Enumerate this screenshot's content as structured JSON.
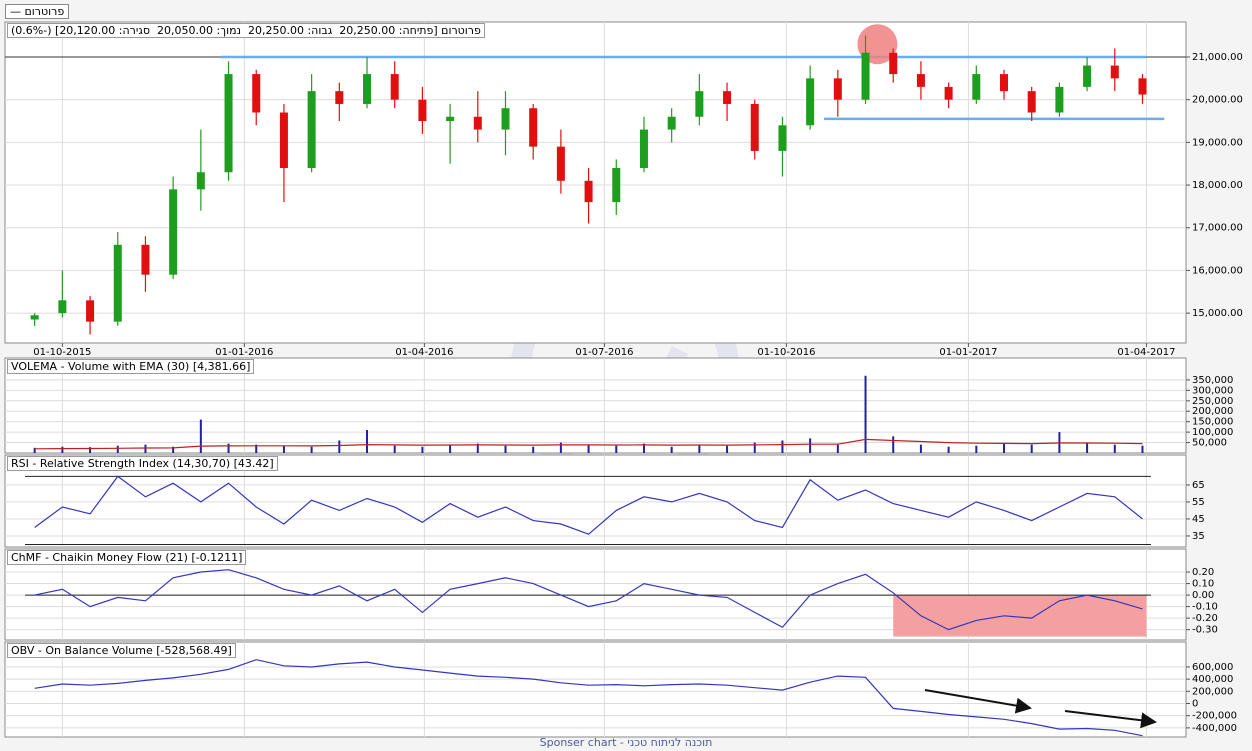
{
  "header": {
    "button": "פרוטרום —"
  },
  "footer": "Sponser chart - תוכנה לניתוח טכני",
  "chart_data": [
    {
      "type": "candlestick",
      "title": "פרוטרום [פתיחה: 20,250.00  גבוה: 20,250.00  נמוך: 20,050.00  סגירה: 20,120.00] (-0.6%)",
      "x": [
        "17-09-2015",
        "01-10-2015",
        "15-10-2015",
        "29-10-2015",
        "12-11-2015",
        "26-11-2015",
        "10-12-2015",
        "24-12-2015",
        "07-01-2016",
        "21-01-2016",
        "04-02-2016",
        "18-02-2016",
        "03-03-2016",
        "17-03-2016",
        "31-03-2016",
        "14-04-2016",
        "28-04-2016",
        "12-05-2016",
        "26-05-2016",
        "09-06-2016",
        "23-06-2016",
        "07-07-2016",
        "21-07-2016",
        "04-08-2016",
        "18-08-2016",
        "01-09-2016",
        "15-09-2016",
        "29-09-2016",
        "13-10-2016",
        "27-10-2016",
        "10-11-2016",
        "24-11-2016",
        "08-12-2016",
        "22-12-2016",
        "05-01-2017",
        "19-01-2017",
        "02-02-2017",
        "16-02-2017",
        "02-03-2017",
        "16-03-2017",
        "30-03-2017"
      ],
      "open": [
        14850,
        15000,
        15300,
        14800,
        16600,
        15900,
        17900,
        18300,
        20600,
        19700,
        18400,
        20200,
        19900,
        20600,
        20000,
        19500,
        19600,
        19300,
        19800,
        18900,
        18100,
        17600,
        18400,
        19300,
        19600,
        20200,
        19900,
        18800,
        19400,
        20500,
        20000,
        21100,
        20600,
        20300,
        20000,
        20600,
        20200,
        19700,
        20300,
        20800,
        20500
      ],
      "high": [
        15000,
        16000,
        15400,
        16900,
        16800,
        18200,
        19300,
        20900,
        20700,
        19900,
        20600,
        20400,
        21000,
        20900,
        20300,
        19900,
        20200,
        20200,
        19900,
        19300,
        18400,
        18600,
        19600,
        19800,
        20600,
        20400,
        20000,
        19600,
        20800,
        20700,
        21500,
        21200,
        20900,
        20400,
        20800,
        20700,
        20300,
        20400,
        21000,
        21200,
        20600
      ],
      "low": [
        14700,
        14900,
        14500,
        14700,
        15500,
        15800,
        17400,
        18100,
        19400,
        17600,
        18300,
        19500,
        19800,
        19800,
        19200,
        18500,
        19000,
        18700,
        18600,
        17800,
        17100,
        17300,
        18300,
        19000,
        19400,
        19500,
        18600,
        18200,
        19300,
        19600,
        19900,
        20400,
        20000,
        19800,
        19900,
        20000,
        19500,
        19600,
        20200,
        20200,
        19900
      ],
      "close": [
        14950,
        15300,
        14800,
        16600,
        15900,
        17900,
        18300,
        20600,
        19700,
        18400,
        20200,
        19900,
        20600,
        20000,
        19500,
        19600,
        19300,
        19800,
        18900,
        18100,
        17600,
        18400,
        19300,
        19600,
        20200,
        19900,
        18800,
        19400,
        20500,
        20000,
        21100,
        20600,
        20300,
        20000,
        20600,
        20200,
        19700,
        20300,
        20800,
        20500,
        20120
      ],
      "up_color": "#1e9e1e",
      "down_color": "#e01010",
      "xlim": [
        "02-09-2015",
        "21-04-2017"
      ],
      "xticks": [
        "01-10-2015",
        "01-01-2016",
        "01-04-2016",
        "01-07-2016",
        "01-10-2016",
        "01-01-2017",
        "01-04-2017"
      ],
      "ylim": [
        14300,
        21820
      ],
      "yticks": [
        {
          "value": 15000,
          "label": "15,000.00"
        },
        {
          "value": 16000,
          "label": "16,000.00"
        },
        {
          "value": 17000,
          "label": "17,000.00"
        },
        {
          "value": 18000,
          "label": "18,000.00"
        },
        {
          "value": 19000,
          "label": "19,000.00"
        },
        {
          "value": 20000,
          "label": "20,000.00"
        },
        {
          "value": 21000,
          "label": "21,000.00"
        }
      ],
      "grid": true,
      "reference_line": 21000,
      "h_lines": [
        {
          "value": 21000,
          "from": "20-12-2015",
          "to": "01-04-2017",
          "color": "#6aaef0"
        },
        {
          "value": 19550,
          "from": "20-10-2016",
          "to": "10-04-2017",
          "color": "#6aaef0"
        }
      ],
      "highlight": {
        "x": "16-11-2016",
        "y": 21300,
        "color": "#f08080"
      }
    },
    {
      "type": "bar",
      "title": "VOLEMA - Volume with EMA (30) [4,381.66]",
      "x": [
        "17-09-2015",
        "01-10-2015",
        "15-10-2015",
        "29-10-2015",
        "12-11-2015",
        "26-11-2015",
        "10-12-2015",
        "24-12-2015",
        "07-01-2016",
        "21-01-2016",
        "04-02-2016",
        "18-02-2016",
        "03-03-2016",
        "17-03-2016",
        "31-03-2016",
        "14-04-2016",
        "28-04-2016",
        "12-05-2016",
        "26-05-2016",
        "09-06-2016",
        "23-06-2016",
        "07-07-2016",
        "21-07-2016",
        "04-08-2016",
        "18-08-2016",
        "01-09-2016",
        "15-09-2016",
        "29-09-2016",
        "13-10-2016",
        "27-10-2016",
        "10-11-2016",
        "24-11-2016",
        "08-12-2016",
        "22-12-2016",
        "05-01-2017",
        "19-01-2017",
        "02-02-2017",
        "16-02-2017",
        "02-03-2017",
        "16-03-2017",
        "30-03-2017"
      ],
      "values": [
        25000,
        30000,
        28000,
        35000,
        40000,
        30000,
        160000,
        45000,
        40000,
        35000,
        30000,
        60000,
        110000,
        35000,
        30000,
        40000,
        45000,
        35000,
        30000,
        50000,
        40000,
        35000,
        45000,
        30000,
        40000,
        35000,
        50000,
        60000,
        70000,
        40000,
        370000,
        80000,
        40000,
        30000,
        35000,
        45000,
        40000,
        100000,
        50000,
        40000,
        35000
      ],
      "color": "#2020a0",
      "line_values": [
        20000,
        21000,
        21500,
        22500,
        24000,
        24500,
        33000,
        34000,
        34500,
        34500,
        34000,
        36000,
        40000,
        39000,
        38000,
        38500,
        39000,
        38500,
        38000,
        39000,
        39000,
        38500,
        39000,
        38000,
        38500,
        38000,
        39000,
        40000,
        42000,
        42000,
        65000,
        60000,
        55000,
        50000,
        47000,
        46000,
        45000,
        48000,
        48000,
        47000,
        45000
      ],
      "line_color": "#c02020",
      "ylim": [
        0,
        455000
      ],
      "yticks": [
        {
          "value": 50000,
          "label": "50,000"
        },
        {
          "value": 100000,
          "label": "100,000"
        },
        {
          "value": 150000,
          "label": "150,000"
        },
        {
          "value": 200000,
          "label": "200,000"
        },
        {
          "value": 250000,
          "label": "250,000"
        },
        {
          "value": 300000,
          "label": "300,000"
        },
        {
          "value": 350000,
          "label": "350,000"
        }
      ],
      "grid": true
    },
    {
      "type": "line",
      "title": "RSI - Relative Strength Index (14,30,70) [43.42]",
      "x": [
        "17-09-2015",
        "01-10-2015",
        "15-10-2015",
        "29-10-2015",
        "12-11-2015",
        "26-11-2015",
        "10-12-2015",
        "24-12-2015",
        "07-01-2016",
        "21-01-2016",
        "04-02-2016",
        "18-02-2016",
        "03-03-2016",
        "17-03-2016",
        "31-03-2016",
        "14-04-2016",
        "28-04-2016",
        "12-05-2016",
        "26-05-2016",
        "09-06-2016",
        "23-06-2016",
        "07-07-2016",
        "21-07-2016",
        "04-08-2016",
        "18-08-2016",
        "01-09-2016",
        "15-09-2016",
        "29-09-2016",
        "13-10-2016",
        "27-10-2016",
        "10-11-2016",
        "24-11-2016",
        "08-12-2016",
        "22-12-2016",
        "05-01-2017",
        "19-01-2017",
        "02-02-2017",
        "16-02-2017",
        "02-03-2017",
        "16-03-2017",
        "30-03-2017"
      ],
      "values": [
        40,
        52,
        48,
        70,
        58,
        66,
        55,
        66,
        52,
        42,
        56,
        50,
        57,
        52,
        43,
        54,
        46,
        52,
        44,
        42,
        36,
        50,
        58,
        55,
        60,
        55,
        44,
        40,
        68,
        56,
        62,
        54,
        50,
        46,
        55,
        50,
        44,
        52,
        60,
        58,
        45
      ],
      "color": "#3535c0",
      "levels": [
        30,
        70
      ],
      "ylim": [
        28.5,
        82.6
      ],
      "yticks": [
        35,
        45,
        55,
        65
      ],
      "grid": true
    },
    {
      "type": "line",
      "title": "ChMF - Chaikin Money Flow (21) [-0.1211]",
      "x": [
        "17-09-2015",
        "01-10-2015",
        "15-10-2015",
        "29-10-2015",
        "12-11-2015",
        "26-11-2015",
        "10-12-2015",
        "24-12-2015",
        "07-01-2016",
        "21-01-2016",
        "04-02-2016",
        "18-02-2016",
        "03-03-2016",
        "17-03-2016",
        "31-03-2016",
        "14-04-2016",
        "28-04-2016",
        "12-05-2016",
        "26-05-2016",
        "09-06-2016",
        "23-06-2016",
        "07-07-2016",
        "21-07-2016",
        "04-08-2016",
        "18-08-2016",
        "01-09-2016",
        "15-09-2016",
        "29-09-2016",
        "13-10-2016",
        "27-10-2016",
        "10-11-2016",
        "24-11-2016",
        "08-12-2016",
        "22-12-2016",
        "05-01-2017",
        "19-01-2017",
        "02-02-2017",
        "16-02-2017",
        "02-03-2017",
        "16-03-2017",
        "30-03-2017"
      ],
      "values": [
        0,
        0.05,
        -0.1,
        -0.02,
        -0.05,
        0.15,
        0.2,
        0.22,
        0.15,
        0.05,
        0,
        0.08,
        -0.05,
        0.05,
        -0.15,
        0.05,
        0.1,
        0.15,
        0.1,
        0,
        -0.1,
        -0.05,
        0.1,
        0.05,
        0,
        -0.02,
        -0.15,
        -0.28,
        0,
        0.1,
        0.18,
        0.02,
        -0.18,
        -0.3,
        -0.22,
        -0.18,
        -0.2,
        -0.05,
        0,
        -0.05,
        -0.12
      ],
      "color": "#3535c0",
      "levels": [
        0
      ],
      "box": {
        "x": [
          "24-11-2016",
          "01-04-2017"
        ],
        "y": [
          -0.36,
          0
        ],
        "color": "#f4a0a0"
      },
      "ylim": [
        -0.39,
        0.4
      ],
      "yticks": [
        {
          "value": -0.3,
          "label": "-0.30"
        },
        {
          "value": -0.2,
          "label": "-0.20"
        },
        {
          "value": -0.1,
          "label": "-0.10"
        },
        {
          "value": 0,
          "label": "0.00"
        },
        {
          "value": 0.1,
          "label": "0.10"
        },
        {
          "value": 0.2,
          "label": "0.20"
        }
      ],
      "grid": true
    },
    {
      "type": "line",
      "title": "OBV - On Balance Volume [-528,568.49]",
      "x": [
        "17-09-2015",
        "01-10-2015",
        "15-10-2015",
        "29-10-2015",
        "12-11-2015",
        "26-11-2015",
        "10-12-2015",
        "24-12-2015",
        "07-01-2016",
        "21-01-2016",
        "04-02-2016",
        "18-02-2016",
        "03-03-2016",
        "17-03-2016",
        "31-03-2016",
        "14-04-2016",
        "28-04-2016",
        "12-05-2016",
        "26-05-2016",
        "09-06-2016",
        "23-06-2016",
        "07-07-2016",
        "21-07-2016",
        "04-08-2016",
        "18-08-2016",
        "01-09-2016",
        "15-09-2016",
        "29-09-2016",
        "13-10-2016",
        "27-10-2016",
        "10-11-2016",
        "24-11-2016",
        "08-12-2016",
        "22-12-2016",
        "05-01-2017",
        "19-01-2017",
        "02-02-2017",
        "16-02-2017",
        "02-03-2017",
        "16-03-2017",
        "30-03-2017"
      ],
      "values": [
        250000,
        320000,
        300000,
        330000,
        380000,
        420000,
        480000,
        560000,
        720000,
        620000,
        600000,
        650000,
        680000,
        600000,
        550000,
        500000,
        450000,
        430000,
        400000,
        340000,
        300000,
        310000,
        290000,
        310000,
        320000,
        300000,
        260000,
        220000,
        350000,
        450000,
        430000,
        -80000,
        -130000,
        -180000,
        -220000,
        -260000,
        -330000,
        -420000,
        -410000,
        -440000,
        -528568.49
      ],
      "color": "#3535c0",
      "ylim": [
        -550000,
        1010000
      ],
      "yticks": [
        {
          "value": -400000,
          "label": "-400,000"
        },
        {
          "value": -200000,
          "label": "-200,000"
        },
        0,
        {
          "value": 200000,
          "label": "200,000"
        },
        {
          "value": 400000,
          "label": "400,000"
        },
        {
          "value": 600000,
          "label": "600,000"
        }
      ],
      "grid": true
    }
  ]
}
